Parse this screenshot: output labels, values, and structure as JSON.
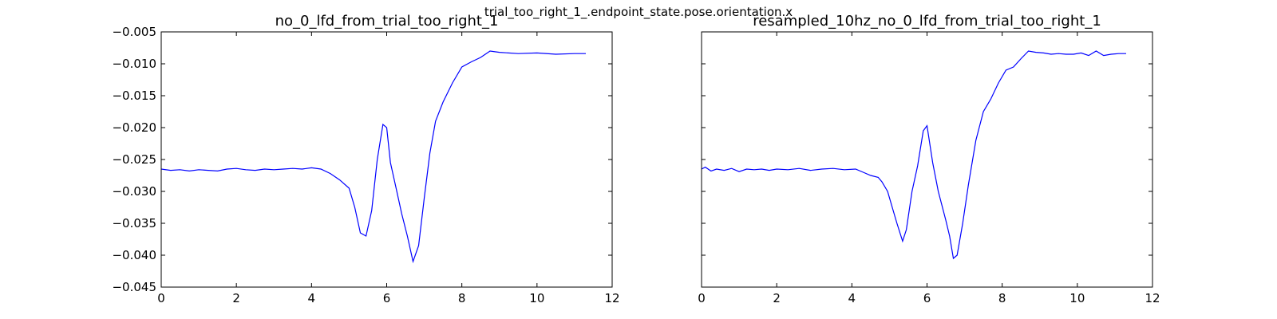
{
  "figure": {
    "suptitle": "trial_too_right_1_.endpoint_state.pose.orientation.x"
  },
  "chart_data": [
    {
      "type": "line",
      "title": "no_0_lfd_from_trial_too_right_1",
      "xlabel": "",
      "ylabel": "",
      "xlim": [
        0,
        12
      ],
      "ylim": [
        -0.045,
        -0.005
      ],
      "xticks": [
        0,
        2,
        4,
        6,
        8,
        10,
        12
      ],
      "xtick_labels": [
        "0",
        "2",
        "4",
        "6",
        "8",
        "10",
        "12"
      ],
      "yticks": [
        -0.045,
        -0.04,
        -0.035,
        -0.03,
        -0.025,
        -0.02,
        -0.015,
        -0.01,
        -0.005
      ],
      "ytick_labels": [
        "−0.045",
        "−0.040",
        "−0.035",
        "−0.030",
        "−0.025",
        "−0.020",
        "−0.015",
        "−0.010",
        "−0.005"
      ],
      "show_yticklabels": true,
      "grid": false,
      "color": "#0000ff",
      "series": [
        {
          "x": [
            0,
            0.25,
            0.5,
            0.75,
            1.0,
            1.25,
            1.5,
            1.75,
            2.0,
            2.25,
            2.5,
            2.75,
            3.0,
            3.25,
            3.5,
            3.75,
            4.0,
            4.25,
            4.5,
            4.75,
            5.0,
            5.15,
            5.3,
            5.45,
            5.6,
            5.75,
            5.9,
            6.0,
            6.1,
            6.25,
            6.4,
            6.55,
            6.7,
            6.85,
            7.0,
            7.15,
            7.3,
            7.5,
            7.75,
            8.0,
            8.25,
            8.5,
            8.75,
            9.0,
            9.5,
            10.0,
            10.5,
            11.0,
            11.3
          ],
          "y": [
            -0.0265,
            -0.0267,
            -0.0266,
            -0.0268,
            -0.0266,
            -0.0267,
            -0.0268,
            -0.0265,
            -0.0264,
            -0.0266,
            -0.0267,
            -0.0265,
            -0.0266,
            -0.0265,
            -0.0264,
            -0.0265,
            -0.0263,
            -0.0265,
            -0.0272,
            -0.0282,
            -0.0295,
            -0.0325,
            -0.0365,
            -0.037,
            -0.033,
            -0.025,
            -0.0195,
            -0.02,
            -0.0255,
            -0.0295,
            -0.0335,
            -0.037,
            -0.041,
            -0.0385,
            -0.031,
            -0.024,
            -0.019,
            -0.016,
            -0.013,
            -0.0105,
            -0.0097,
            -0.009,
            -0.008,
            -0.0082,
            -0.0084,
            -0.0083,
            -0.0085,
            -0.0084,
            -0.0084
          ]
        }
      ]
    },
    {
      "type": "line",
      "title": "resampled_10hz_no_0_lfd_from_trial_too_right_1",
      "xlabel": "",
      "ylabel": "",
      "xlim": [
        0,
        12
      ],
      "ylim": [
        -0.045,
        -0.005
      ],
      "xticks": [
        0,
        2,
        4,
        6,
        8,
        10,
        12
      ],
      "xtick_labels": [
        "0",
        "2",
        "4",
        "6",
        "8",
        "10",
        "12"
      ],
      "yticks": [
        -0.045,
        -0.04,
        -0.035,
        -0.03,
        -0.025,
        -0.02,
        -0.015,
        -0.01,
        -0.005
      ],
      "ytick_labels": [],
      "show_yticklabels": false,
      "grid": false,
      "color": "#0000ff",
      "series": [
        {
          "x": [
            0,
            0.1,
            0.25,
            0.4,
            0.6,
            0.8,
            1.0,
            1.2,
            1.4,
            1.6,
            1.8,
            2.0,
            2.3,
            2.6,
            2.9,
            3.2,
            3.5,
            3.8,
            4.1,
            4.3,
            4.5,
            4.7,
            4.8,
            4.95,
            5.1,
            5.2,
            5.35,
            5.45,
            5.6,
            5.75,
            5.9,
            6.0,
            6.15,
            6.3,
            6.5,
            6.6,
            6.7,
            6.8,
            6.95,
            7.1,
            7.3,
            7.5,
            7.7,
            7.9,
            8.1,
            8.3,
            8.5,
            8.7,
            8.9,
            9.1,
            9.3,
            9.5,
            9.7,
            9.9,
            10.1,
            10.3,
            10.5,
            10.7,
            10.9,
            11.1,
            11.3
          ],
          "y": [
            -0.0265,
            -0.0262,
            -0.0268,
            -0.0265,
            -0.0267,
            -0.0264,
            -0.0269,
            -0.0265,
            -0.0266,
            -0.0265,
            -0.0267,
            -0.0265,
            -0.0266,
            -0.0264,
            -0.0267,
            -0.0265,
            -0.0264,
            -0.0266,
            -0.0265,
            -0.027,
            -0.0275,
            -0.0278,
            -0.0285,
            -0.03,
            -0.033,
            -0.035,
            -0.0378,
            -0.036,
            -0.03,
            -0.026,
            -0.0205,
            -0.0197,
            -0.0255,
            -0.03,
            -0.0345,
            -0.037,
            -0.0405,
            -0.04,
            -0.035,
            -0.029,
            -0.022,
            -0.0175,
            -0.0155,
            -0.013,
            -0.011,
            -0.0105,
            -0.0092,
            -0.008,
            -0.0082,
            -0.0083,
            -0.0085,
            -0.0084,
            -0.0085,
            -0.0085,
            -0.0083,
            -0.0087,
            -0.008,
            -0.0087,
            -0.0085,
            -0.0084,
            -0.0084
          ]
        }
      ]
    }
  ]
}
